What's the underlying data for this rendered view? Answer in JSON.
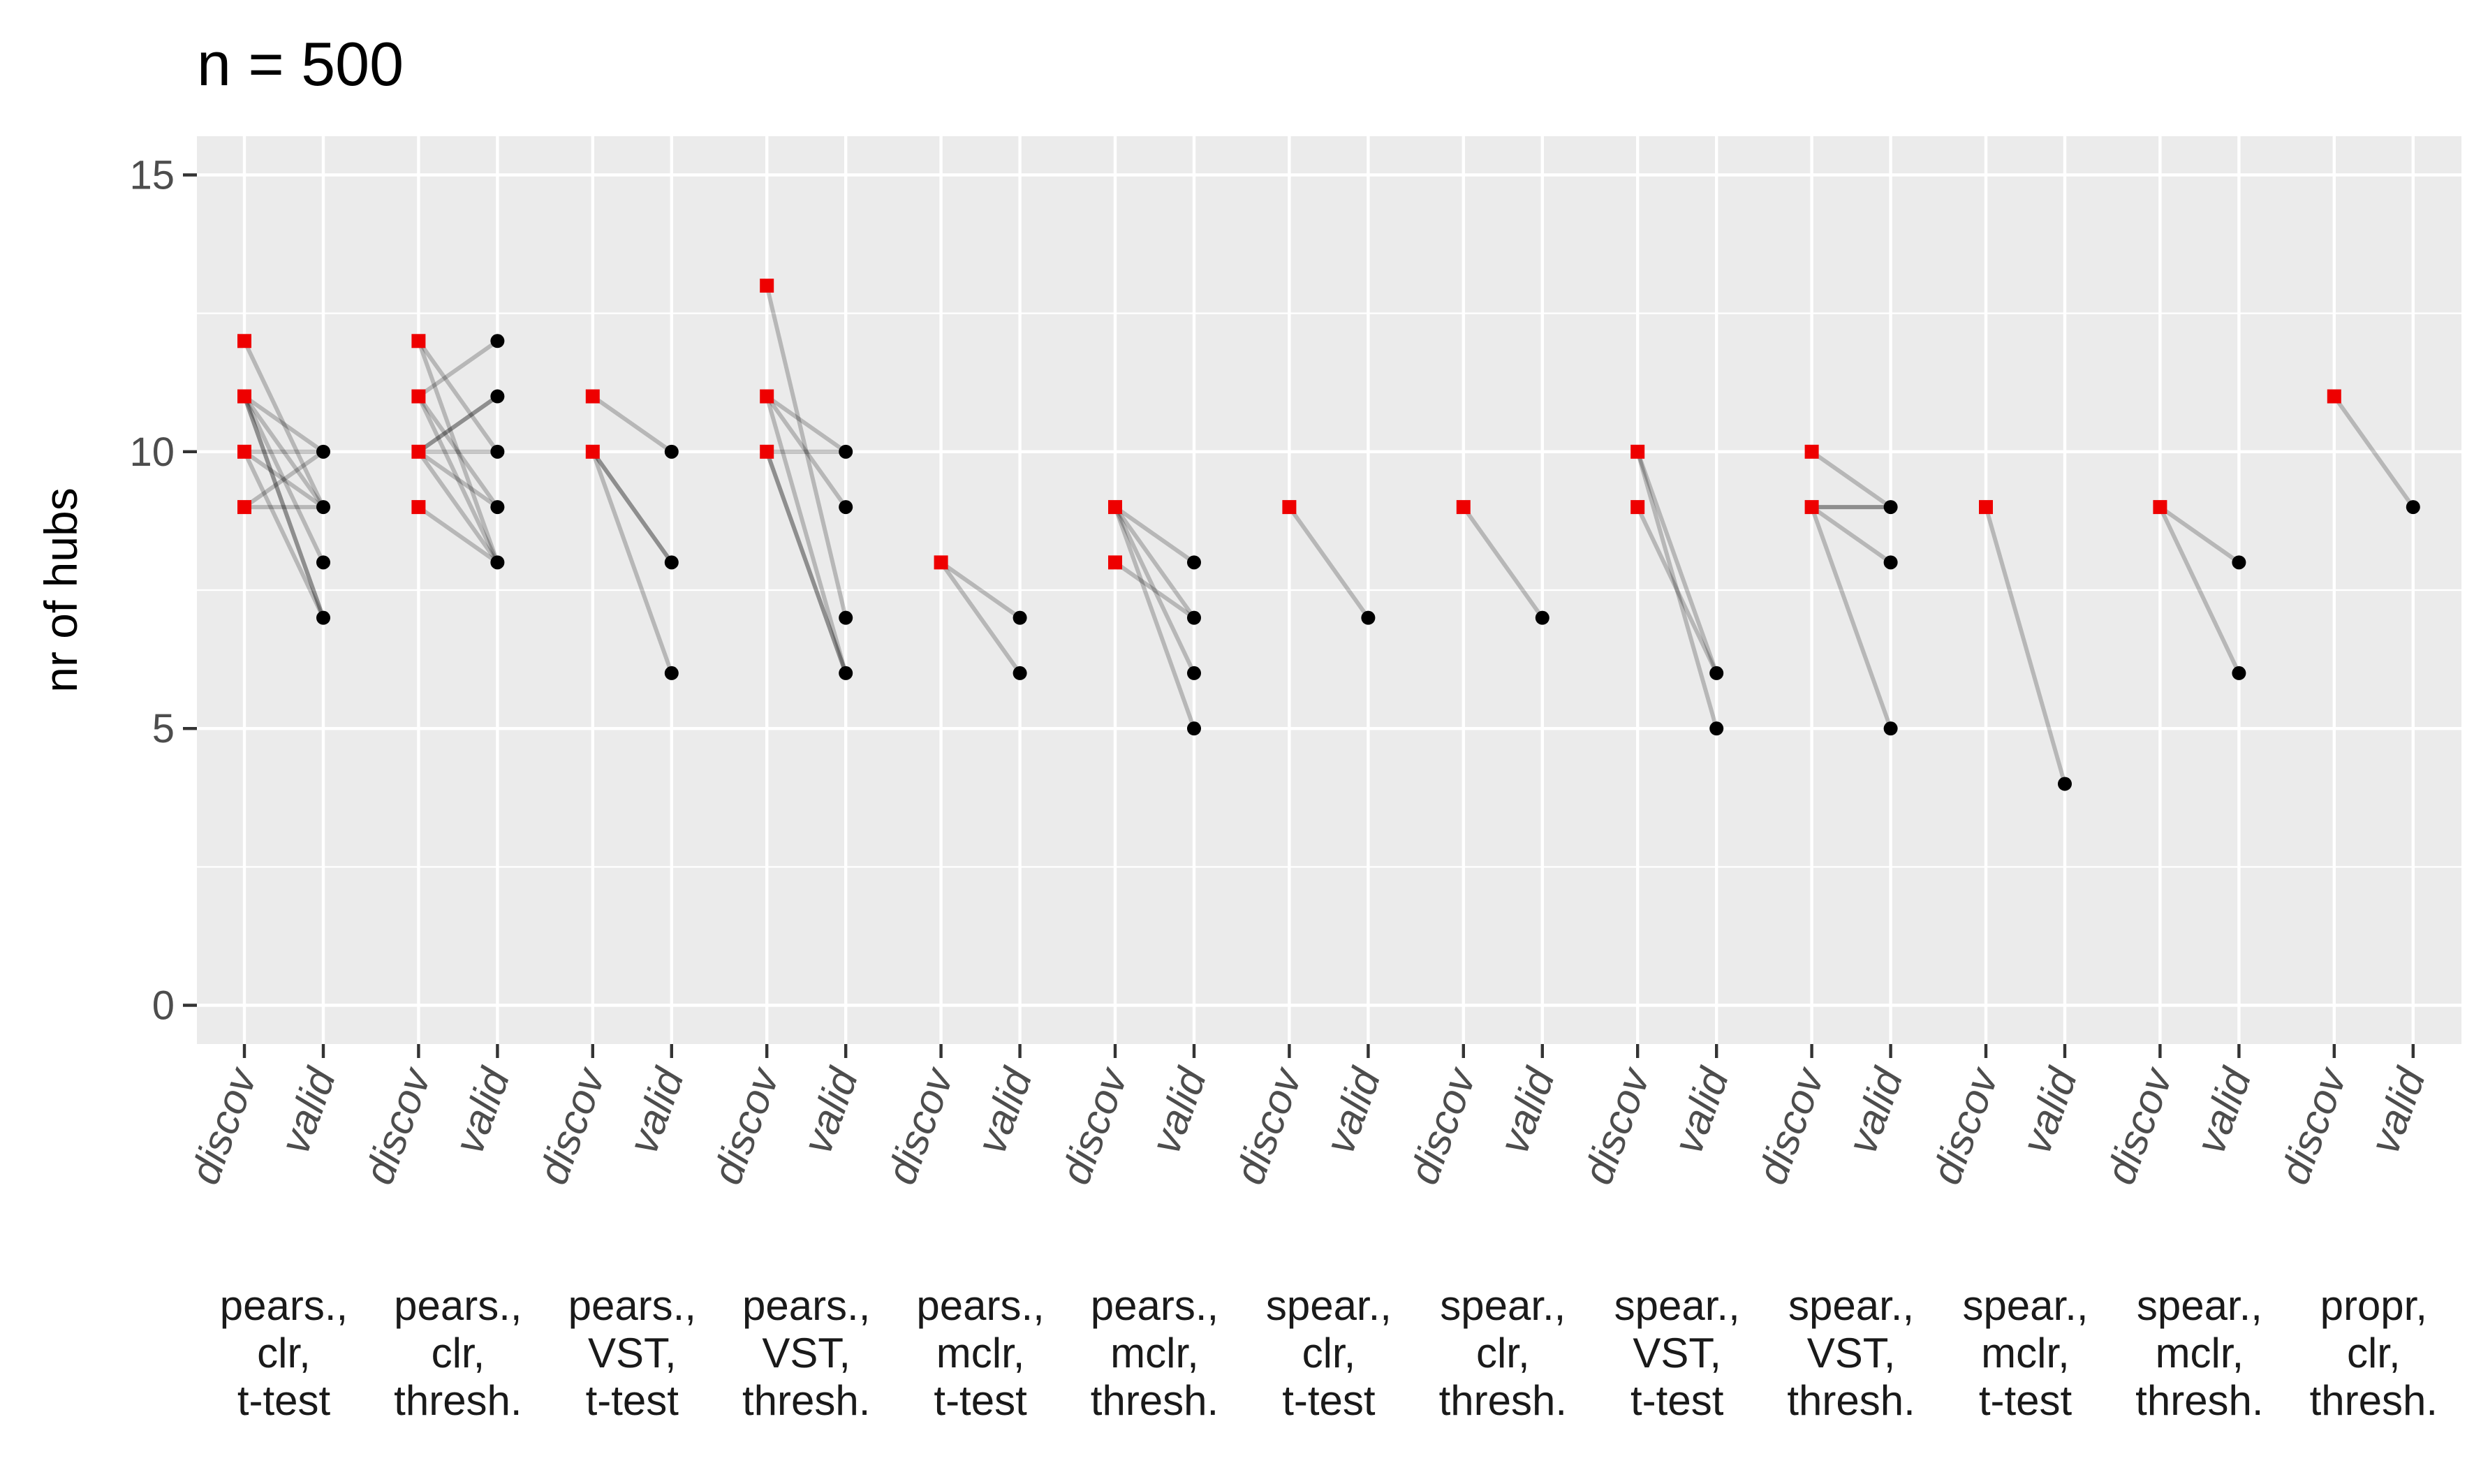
{
  "chart_data": {
    "type": "scatter",
    "title": "n = 500",
    "xlabel": "",
    "ylabel": "nr of hubs",
    "ylim": [
      -0.7,
      15.7
    ],
    "yticks": [
      0,
      5,
      10,
      15
    ],
    "grid": true,
    "legend": "none",
    "x_tick_labels": [
      "discov",
      "valid"
    ],
    "colors": {
      "panel": "#ebebeb",
      "grid": "#ffffff",
      "discovery_point": "#ee0000",
      "validation_point": "#000000",
      "pair_line": "#000000"
    },
    "groups": [
      {
        "label": [
          "pears.,",
          "clr,",
          "t-test"
        ],
        "pairs": [
          [
            12,
            9
          ],
          [
            11,
            10
          ],
          [
            11,
            9
          ],
          [
            11,
            8
          ],
          [
            11,
            7
          ],
          [
            11,
            7
          ],
          [
            10,
            10
          ],
          [
            10,
            9
          ],
          [
            10,
            7
          ],
          [
            9,
            10
          ],
          [
            9,
            9
          ]
        ]
      },
      {
        "label": [
          "pears.,",
          "clr,",
          "thresh."
        ],
        "pairs": [
          [
            12,
            10
          ],
          [
            12,
            8
          ],
          [
            11,
            8
          ],
          [
            11,
            9
          ],
          [
            11,
            12
          ],
          [
            10,
            11
          ],
          [
            10,
            11
          ],
          [
            10,
            10
          ],
          [
            10,
            9
          ],
          [
            10,
            8
          ],
          [
            9,
            8
          ]
        ]
      },
      {
        "label": [
          "pears.,",
          "VST,",
          "t-test"
        ],
        "pairs": [
          [
            11,
            10
          ],
          [
            10,
            8
          ],
          [
            10,
            8
          ],
          [
            10,
            6
          ]
        ]
      },
      {
        "label": [
          "pears.,",
          "VST,",
          "thresh."
        ],
        "pairs": [
          [
            13,
            7
          ],
          [
            11,
            10
          ],
          [
            11,
            9
          ],
          [
            11,
            6
          ],
          [
            10,
            10
          ],
          [
            10,
            6
          ],
          [
            10,
            6
          ]
        ]
      },
      {
        "label": [
          "pears.,",
          "mclr,",
          "t-test"
        ],
        "pairs": [
          [
            8,
            7
          ],
          [
            8,
            6
          ]
        ]
      },
      {
        "label": [
          "pears.,",
          "mclr,",
          "thresh."
        ],
        "pairs": [
          [
            9,
            8
          ],
          [
            9,
            7
          ],
          [
            9,
            6
          ],
          [
            9,
            5
          ],
          [
            8,
            7
          ]
        ]
      },
      {
        "label": [
          "spear.,",
          "clr,",
          "t-test"
        ],
        "pairs": [
          [
            9,
            7
          ]
        ]
      },
      {
        "label": [
          "spear.,",
          "clr,",
          "thresh."
        ],
        "pairs": [
          [
            9,
            7
          ]
        ]
      },
      {
        "label": [
          "spear.,",
          "VST,",
          "t-test"
        ],
        "pairs": [
          [
            10,
            6
          ],
          [
            10,
            5
          ],
          [
            9,
            6
          ]
        ]
      },
      {
        "label": [
          "spear.,",
          "VST,",
          "thresh."
        ],
        "pairs": [
          [
            10,
            9
          ],
          [
            9,
            9
          ],
          [
            9,
            9
          ],
          [
            9,
            8
          ],
          [
            9,
            5
          ]
        ]
      },
      {
        "label": [
          "spear.,",
          "mclr,",
          "t-test"
        ],
        "pairs": [
          [
            9,
            4
          ]
        ]
      },
      {
        "label": [
          "spear.,",
          "mclr,",
          "thresh."
        ],
        "pairs": [
          [
            9,
            8
          ],
          [
            9,
            6
          ]
        ]
      },
      {
        "label": [
          "propr,",
          "clr,",
          "thresh."
        ],
        "pairs": [
          [
            11,
            9
          ]
        ]
      }
    ]
  }
}
